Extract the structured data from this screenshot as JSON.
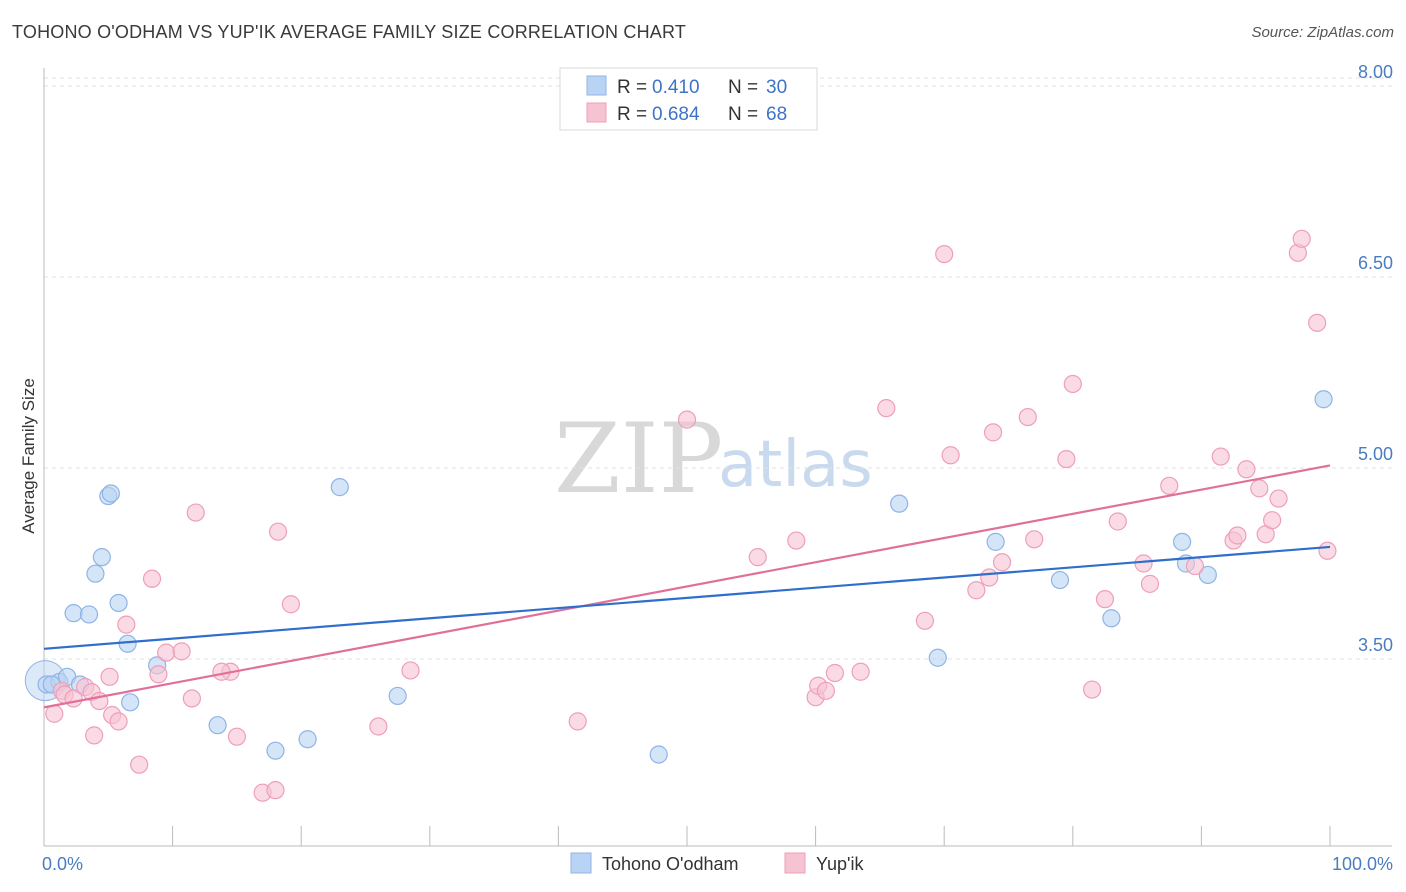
{
  "title": "TOHONO O'ODHAM VS YUP'IK AVERAGE FAMILY SIZE CORRELATION CHART",
  "source": "Source: ZipAtlas.com",
  "watermark": {
    "zip": "ZIP",
    "atlas": "atlas"
  },
  "colors": {
    "blue_fill": "#b9d3f4",
    "blue_stroke": "#8fb4e6",
    "blue_line": "#2f6fcb",
    "pink_fill": "#f6c3d3",
    "pink_stroke": "#ee9fb8",
    "pink_line": "#e0709a",
    "tick_text": "#4a7cc0",
    "grid": "#e2e2e2"
  },
  "legend": {
    "rows": [
      {
        "r_label": "R =",
        "r_value": "0.410",
        "n_label": "N =",
        "n_value": "30",
        "color": "#b9d3f4",
        "stroke": "#8fb4e6"
      },
      {
        "r_label": "R =",
        "r_value": "0.684",
        "n_label": "N =",
        "n_value": "68",
        "color": "#f6c3d3",
        "stroke": "#ee9fb8"
      }
    ]
  },
  "chart_data": {
    "type": "scatter",
    "title": "TOHONO O'ODHAM VS YUP'IK AVERAGE FAMILY SIZE CORRELATION CHART",
    "xlabel": "",
    "ylabel": "Average Family Size",
    "xlim": [
      0,
      100
    ],
    "ylim": [
      2.2,
      8.4
    ],
    "x_tick_labels": [
      "0.0%",
      "100.0%"
    ],
    "y_ticks": [
      3.5,
      5.0,
      6.5,
      8.0
    ],
    "y_tick_labels": [
      "3.50",
      "5.00",
      "6.50",
      "8.00"
    ],
    "grid": "horizontal dashed",
    "legend_position": "top-center",
    "series": [
      {
        "name": "Tohono O'odham",
        "color": "#b9d3f4",
        "trend": {
          "x": [
            0,
            100
          ],
          "y": [
            3.58,
            4.38
          ]
        },
        "points": [
          [
            0.2,
            3.3
          ],
          [
            1.2,
            3.32
          ],
          [
            1.8,
            3.36
          ],
          [
            2.8,
            3.3
          ],
          [
            2.3,
            3.86
          ],
          [
            3.5,
            3.85
          ],
          [
            4.0,
            4.17
          ],
          [
            4.5,
            4.3
          ],
          [
            5.0,
            4.78
          ],
          [
            5.2,
            4.8
          ],
          [
            5.8,
            3.94
          ],
          [
            6.5,
            3.62
          ],
          [
            6.7,
            3.16
          ],
          [
            8.8,
            3.45
          ],
          [
            13.5,
            2.98
          ],
          [
            18.0,
            2.78
          ],
          [
            20.5,
            2.87
          ],
          [
            23.0,
            4.85
          ],
          [
            27.5,
            3.21
          ],
          [
            47.8,
            2.75
          ],
          [
            66.5,
            4.72
          ],
          [
            69.5,
            3.51
          ],
          [
            74.0,
            4.42
          ],
          [
            79.0,
            4.12
          ],
          [
            83.0,
            3.82
          ],
          [
            88.5,
            4.42
          ],
          [
            88.8,
            4.25
          ],
          [
            90.5,
            4.16
          ],
          [
            99.5,
            5.54
          ],
          [
            0.6,
            3.3
          ]
        ]
      },
      {
        "name": "Yup'ik",
        "color": "#f6c3d3",
        "trend": {
          "x": [
            0,
            100
          ],
          "y": [
            3.12,
            5.02
          ]
        },
        "points": [
          [
            0.8,
            3.07
          ],
          [
            1.4,
            3.25
          ],
          [
            1.6,
            3.22
          ],
          [
            2.3,
            3.19
          ],
          [
            3.2,
            3.28
          ],
          [
            3.7,
            3.24
          ],
          [
            3.9,
            2.9
          ],
          [
            4.3,
            3.17
          ],
          [
            5.1,
            3.36
          ],
          [
            5.3,
            3.06
          ],
          [
            5.8,
            3.01
          ],
          [
            6.4,
            3.77
          ],
          [
            7.4,
            2.67
          ],
          [
            8.4,
            4.13
          ],
          [
            8.9,
            3.38
          ],
          [
            9.5,
            3.55
          ],
          [
            10.7,
            3.56
          ],
          [
            11.5,
            3.19
          ],
          [
            11.8,
            4.65
          ],
          [
            14.5,
            3.4
          ],
          [
            15.0,
            2.89
          ],
          [
            17.0,
            2.45
          ],
          [
            18.0,
            2.47
          ],
          [
            18.2,
            4.5
          ],
          [
            19.2,
            3.93
          ],
          [
            26.0,
            2.97
          ],
          [
            28.5,
            3.41
          ],
          [
            41.5,
            3.01
          ],
          [
            50.0,
            5.38
          ],
          [
            55.5,
            4.3
          ],
          [
            58.5,
            4.43
          ],
          [
            60.0,
            3.2
          ],
          [
            60.2,
            3.29
          ],
          [
            60.8,
            3.25
          ],
          [
            61.5,
            3.39
          ],
          [
            63.5,
            3.4
          ],
          [
            65.5,
            5.47
          ],
          [
            68.5,
            3.8
          ],
          [
            70.0,
            6.68
          ],
          [
            70.5,
            5.1
          ],
          [
            72.5,
            4.04
          ],
          [
            73.5,
            4.14
          ],
          [
            73.8,
            5.28
          ],
          [
            74.5,
            4.26
          ],
          [
            76.5,
            5.4
          ],
          [
            77.0,
            4.44
          ],
          [
            79.5,
            5.07
          ],
          [
            80.0,
            5.66
          ],
          [
            81.5,
            3.26
          ],
          [
            82.5,
            3.97
          ],
          [
            83.5,
            4.58
          ],
          [
            85.5,
            4.25
          ],
          [
            86.0,
            4.09
          ],
          [
            87.5,
            4.86
          ],
          [
            89.5,
            4.23
          ],
          [
            91.5,
            5.09
          ],
          [
            92.5,
            4.43
          ],
          [
            92.8,
            4.47
          ],
          [
            93.5,
            4.99
          ],
          [
            94.5,
            4.84
          ],
          [
            95.0,
            4.48
          ],
          [
            95.5,
            4.59
          ],
          [
            96.0,
            4.76
          ],
          [
            97.5,
            6.69
          ],
          [
            97.8,
            6.8
          ],
          [
            99.0,
            6.14
          ],
          [
            99.8,
            4.35
          ],
          [
            13.8,
            3.4
          ]
        ]
      }
    ]
  },
  "bottom_legend": [
    {
      "label": "Tohono O'odham",
      "color": "#b9d3f4",
      "stroke": "#8fb4e6"
    },
    {
      "label": "Yup'ik",
      "color": "#f6c3d3",
      "stroke": "#ee9fb8"
    }
  ]
}
